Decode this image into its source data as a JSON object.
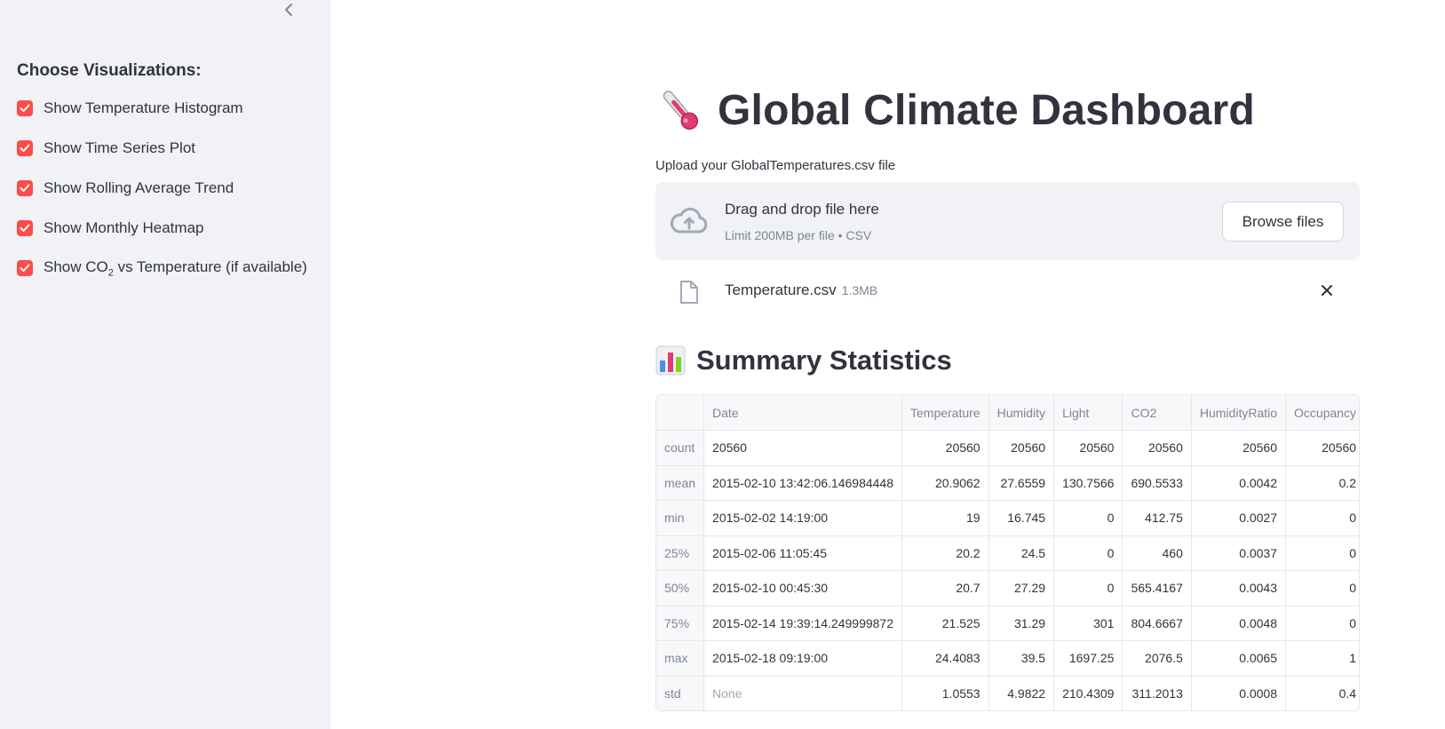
{
  "sidebar": {
    "heading": "Choose Visualizations:",
    "checkboxes": [
      {
        "label": "Show Temperature Histogram",
        "checked": true
      },
      {
        "label": "Show Time Series Plot",
        "checked": true
      },
      {
        "label": "Show Rolling Average Trend",
        "checked": true
      },
      {
        "label": "Show Monthly Heatmap",
        "checked": true
      },
      {
        "label_pre": "Show CO",
        "label_sub": "2",
        "label_post": " vs Temperature (if available)",
        "checked": true
      }
    ],
    "collapse_icon": "chevron-left-icon"
  },
  "header": {
    "emoji": "thermometer-icon",
    "title": "Global Climate Dashboard"
  },
  "uploader": {
    "label": "Upload your GlobalTemperatures.csv file",
    "drop_title": "Drag and drop file here",
    "drop_subtitle": "Limit 200MB per file • CSV",
    "browse_label": "Browse files",
    "file": {
      "name": "Temperature.csv",
      "size": "1.3MB"
    }
  },
  "summary": {
    "emoji": "bar-chart-icon",
    "title": "Summary Statistics",
    "columns": [
      "",
      "Date",
      "Temperature",
      "Humidity",
      "Light",
      "CO2",
      "HumidityRatio",
      "Occupancy"
    ],
    "rows": [
      {
        "index": "count",
        "cells": [
          "20560",
          "20560",
          "20560",
          "20560",
          "20560",
          "20560",
          "20560"
        ]
      },
      {
        "index": "mean",
        "cells": [
          "2015-02-10 13:42:06.146984448",
          "20.9062",
          "27.6559",
          "130.7566",
          "690.5533",
          "0.0042",
          "0.2"
        ]
      },
      {
        "index": "min",
        "cells": [
          "2015-02-02 14:19:00",
          "19",
          "16.745",
          "0",
          "412.75",
          "0.0027",
          "0"
        ]
      },
      {
        "index": "25%",
        "cells": [
          "2015-02-06 11:05:45",
          "20.2",
          "24.5",
          "0",
          "460",
          "0.0037",
          "0"
        ]
      },
      {
        "index": "50%",
        "cells": [
          "2015-02-10 00:45:30",
          "20.7",
          "27.29",
          "0",
          "565.4167",
          "0.0043",
          "0"
        ]
      },
      {
        "index": "75%",
        "cells": [
          "2015-02-14 19:39:14.249999872",
          "21.525",
          "31.29",
          "301",
          "804.6667",
          "0.0048",
          "0"
        ]
      },
      {
        "index": "max",
        "cells": [
          "2015-02-18 09:19:00",
          "24.4083",
          "39.5",
          "1697.25",
          "2076.5",
          "0.0065",
          "1"
        ]
      },
      {
        "index": "std",
        "cells": [
          "None",
          "1.0553",
          "4.9822",
          "210.4309",
          "311.2013",
          "0.0008",
          "0.4"
        ]
      }
    ]
  },
  "colors": {
    "accent": "#ff4b4b",
    "sidebar_bg": "#f0f2f6",
    "text": "#31333f",
    "muted": "#808495"
  }
}
